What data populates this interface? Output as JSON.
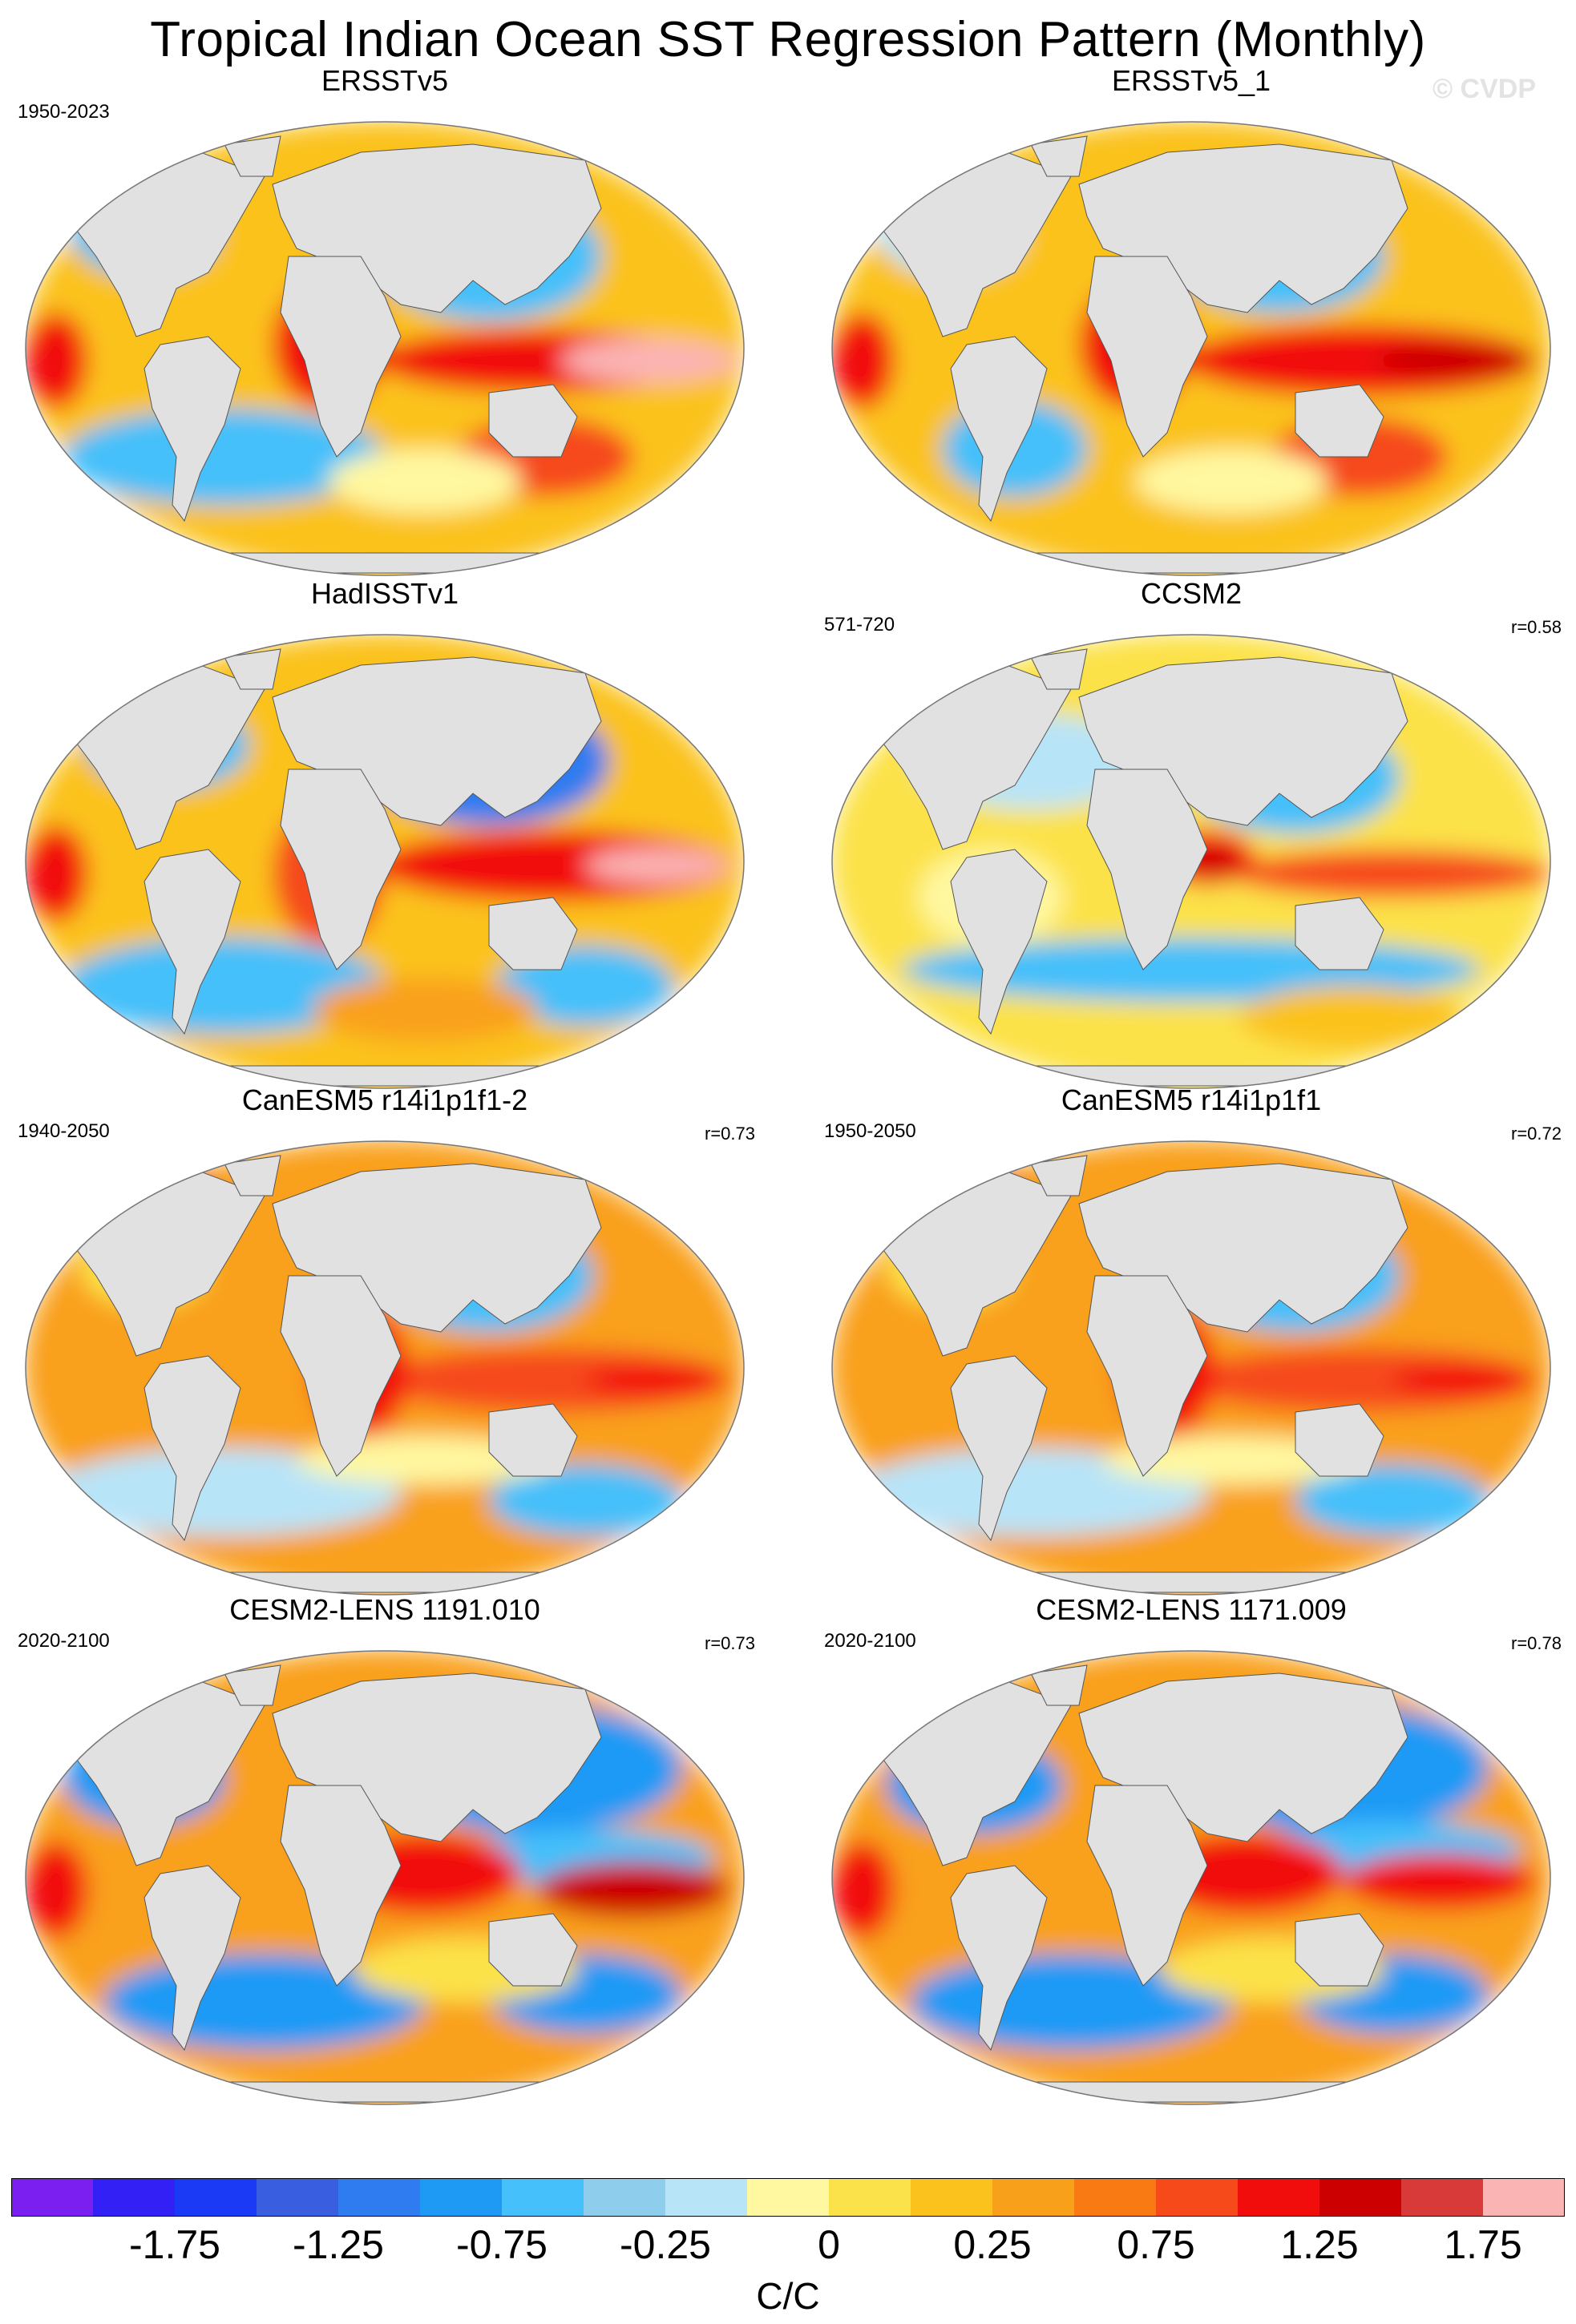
{
  "title": "Tropical Indian Ocean SST Regression Pattern (Monthly)",
  "watermark": "© CVDP",
  "panels": [
    {
      "title": "ERSSTv5",
      "years": "1950-2023",
      "corr": ""
    },
    {
      "title": "ERSSTv5_1",
      "years": "",
      "corr": ""
    },
    {
      "title": "HadISSTv1",
      "years": "",
      "corr": ""
    },
    {
      "title": "CCSM2",
      "years": "571-720",
      "corr": "r=0.58"
    },
    {
      "title": "CanESM5 r14i1p1f1-2",
      "years": "1940-2050",
      "corr": "r=0.73"
    },
    {
      "title": "CanESM5 r14i1p1f1",
      "years": "1950-2050",
      "corr": "r=0.72"
    },
    {
      "title": "CESM2-LENS 1191.010",
      "years": "2020-2100",
      "corr": "r=0.73"
    },
    {
      "title": "CESM2-LENS 1171.009",
      "years": "2020-2100",
      "corr": "r=0.78"
    }
  ],
  "colorbar": {
    "colors": [
      "#7a1ff0",
      "#3320f5",
      "#1a3af5",
      "#3a5ee0",
      "#2f7cf0",
      "#1e9af5",
      "#45c0fa",
      "#8fcdec",
      "#b8e4f8",
      "#fff8a0",
      "#fce24a",
      "#fbc21e",
      "#f9a01a",
      "#f97a12",
      "#f64a1a",
      "#f20d0d",
      "#cc0000",
      "#d83a3a",
      "#fbb4b4"
    ],
    "labels": [
      "-1.75",
      "-1.25",
      "-0.75",
      "-0.25",
      "0",
      "0.25",
      "0.75",
      "1.25",
      "1.75"
    ],
    "units": "C/C"
  }
}
